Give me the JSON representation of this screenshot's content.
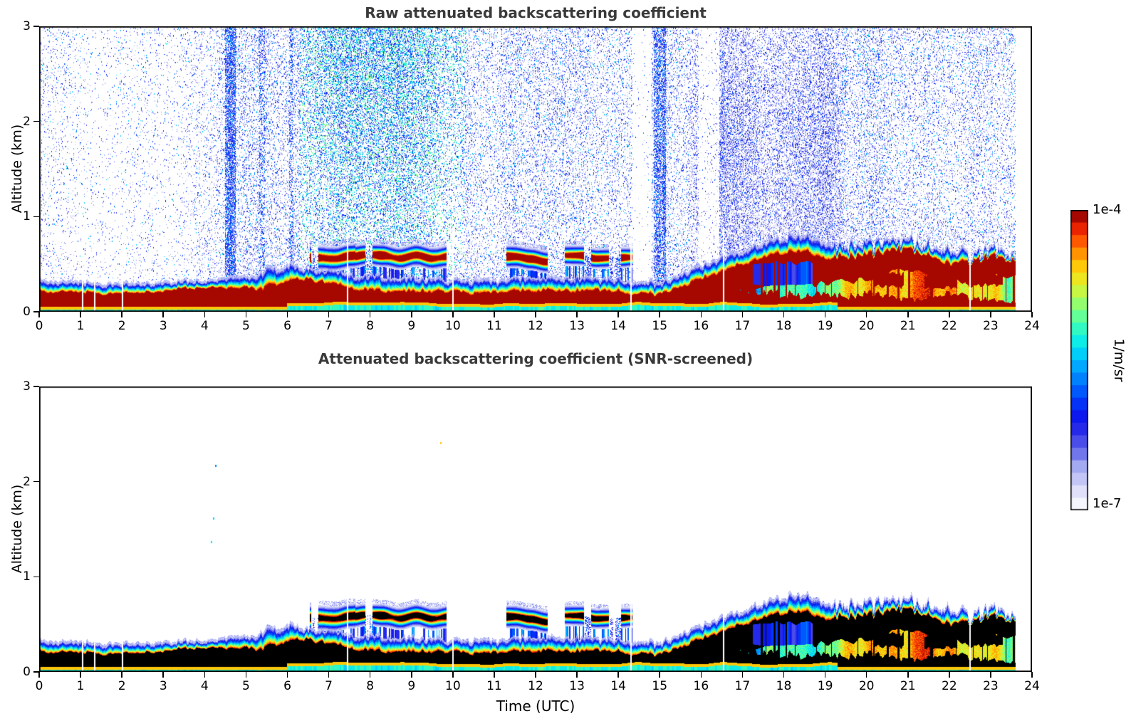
{
  "chart_data": {
    "type": "heatmap",
    "panels": [
      {
        "title": "Raw attenuated backscattering coefficient"
      },
      {
        "title": "Attenuated backscattering coefficient (SNR-screened)"
      }
    ],
    "axes": {
      "xlabel": "Time (UTC)",
      "ylabel": "Altitude (km)",
      "xlim": [
        0,
        24
      ],
      "ylim": [
        0,
        3
      ],
      "xticks": [
        0,
        1,
        2,
        3,
        4,
        5,
        6,
        7,
        8,
        9,
        10,
        11,
        12,
        13,
        14,
        15,
        16,
        17,
        18,
        19,
        20,
        21,
        22,
        23,
        24
      ],
      "yticks": [
        0,
        1,
        2,
        3
      ]
    },
    "colorbar": {
      "unit": "1/m/sr",
      "max_label": "1e-4",
      "min_label": "1e-7",
      "vmin": 1e-07,
      "vmax": 0.0001,
      "scale": "log10",
      "levels": 24,
      "stops": [
        {
          "u": 0.0,
          "c": "#ffffff"
        },
        {
          "u": 0.07,
          "c": "#dcdcfa"
        },
        {
          "u": 0.14,
          "c": "#aab0f2"
        },
        {
          "u": 0.2,
          "c": "#6468ec"
        },
        {
          "u": 0.26,
          "c": "#2b2de8"
        },
        {
          "u": 0.32,
          "c": "#0a16f0"
        },
        {
          "u": 0.38,
          "c": "#0049fb"
        },
        {
          "u": 0.44,
          "c": "#0083ff"
        },
        {
          "u": 0.5,
          "c": "#00bcff"
        },
        {
          "u": 0.55,
          "c": "#04e9f0"
        },
        {
          "u": 0.6,
          "c": "#2df8c8"
        },
        {
          "u": 0.65,
          "c": "#66ff94"
        },
        {
          "u": 0.7,
          "c": "#a4fc60"
        },
        {
          "u": 0.75,
          "c": "#dff22e"
        },
        {
          "u": 0.8,
          "c": "#ffd60a"
        },
        {
          "u": 0.85,
          "c": "#ff9b00"
        },
        {
          "u": 0.9,
          "c": "#ff5000"
        },
        {
          "u": 0.95,
          "c": "#e31400"
        },
        {
          "u": 1.0,
          "c": "#7e0000"
        }
      ]
    },
    "time_end": 23.6,
    "control_step_h": 0.5,
    "model": {
      "core_top_km": [
        0.22,
        0.2,
        0.21,
        0.19,
        0.2,
        0.2,
        0.21,
        0.24,
        0.26,
        0.25,
        0.24,
        0.26,
        0.3,
        0.34,
        0.3,
        0.24,
        0.22,
        0.22,
        0.22,
        0.21,
        0.2,
        0.19,
        0.2,
        0.22,
        0.22,
        0.21,
        0.22,
        0.22,
        0.21,
        0.18,
        0.19,
        0.25,
        0.35,
        0.42,
        0.5,
        0.58,
        0.62,
        0.64,
        0.55,
        0.58,
        0.6,
        0.62,
        0.65,
        0.6,
        0.5,
        0.52,
        0.58,
        0.55,
        0.55
      ],
      "layer_top_km": [
        0.33,
        0.3,
        0.31,
        0.28,
        0.29,
        0.28,
        0.3,
        0.31,
        0.32,
        0.34,
        0.35,
        0.42,
        0.45,
        0.45,
        0.42,
        0.38,
        0.37,
        0.36,
        0.35,
        0.34,
        0.32,
        0.31,
        0.31,
        0.36,
        0.35,
        0.33,
        0.35,
        0.34,
        0.33,
        0.29,
        0.3,
        0.38,
        0.48,
        0.56,
        0.62,
        0.72,
        0.78,
        0.8,
        0.72,
        0.68,
        0.7,
        0.72,
        0.74,
        0.7,
        0.62,
        0.58,
        0.66,
        0.6,
        0.62
      ],
      "band_base_km": [
        0,
        0,
        0,
        0,
        0,
        0,
        0,
        0,
        0,
        0,
        0,
        0,
        0,
        0,
        0,
        0,
        0,
        0,
        0,
        0,
        0,
        0,
        0,
        0,
        0,
        0,
        0,
        0,
        0,
        0,
        0,
        0,
        0.08,
        0.15,
        0.22,
        0.28,
        0.3,
        0.32,
        0.28,
        0.32,
        0.35,
        0.4,
        0.44,
        0.38,
        0.3,
        0.32,
        0.36,
        0.38,
        0.38
      ],
      "fill_value": [
        1,
        1,
        1,
        1,
        1,
        1,
        1,
        1,
        1,
        1,
        1,
        1,
        1,
        1,
        1,
        1,
        1,
        1,
        1,
        1,
        1,
        1,
        1,
        1,
        1,
        1,
        1,
        1,
        1,
        1,
        1,
        1,
        0.95,
        0.75,
        0.62,
        0.58,
        0.55,
        0.52,
        0.6,
        0.8,
        0.85,
        0.85,
        0.83,
        0.85,
        0.82,
        0.8,
        0.75,
        0.7,
        0.7
      ],
      "surface_core_km": [
        0,
        0,
        0,
        0,
        0,
        0,
        0,
        0,
        0,
        0,
        0,
        0,
        0,
        0,
        0,
        0,
        0,
        0,
        0,
        0,
        0,
        0,
        0,
        0,
        0,
        0,
        0,
        0,
        0,
        0,
        0,
        0,
        0.28,
        0.25,
        0.22,
        0.2,
        0.18,
        0.15,
        0.2,
        0.15,
        0.18,
        0.15,
        0.12,
        0.15,
        0.18,
        0.15,
        0.12,
        0.1,
        0.1
      ],
      "noise_density": [
        0.1,
        0.1,
        0.1,
        0.08,
        0.09,
        0.1,
        0.1,
        0.12,
        0.15,
        0.22,
        0.25,
        0.28,
        0.25,
        0.45,
        0.55,
        0.6,
        0.6,
        0.6,
        0.58,
        0.55,
        0.45,
        0.35,
        0.32,
        0.35,
        0.35,
        0.33,
        0.35,
        0.33,
        0.3,
        0.12,
        0.45,
        0.25,
        0.5,
        0.55,
        0.6,
        0.6,
        0.6,
        0.58,
        0.55,
        0.45,
        0.35,
        0.33,
        0.32,
        0.3,
        0.28,
        0.3,
        0.3,
        0.32,
        0.0
      ],
      "noise_bias_segments": [
        {
          "t0": 6.3,
          "t1": 10.3,
          "mode": "green"
        },
        {
          "t0": 15.7,
          "t1": 19.4,
          "mode": "blue"
        }
      ],
      "clouds": [
        {
          "t0": 6.55,
          "t1": 7.65,
          "z": 0.58,
          "sz": 0.055,
          "presence": 0.85
        },
        {
          "t0": 7.65,
          "t1": 9.85,
          "z": 0.57,
          "sz": 0.05,
          "presence": 0.72
        },
        {
          "t0": 11.3,
          "t1": 12.3,
          "z": 0.55,
          "sz": 0.05,
          "presence": 0.7
        },
        {
          "t0": 12.7,
          "t1": 14.35,
          "z": 0.55,
          "sz": 0.045,
          "presence": 0.65
        }
      ],
      "blue_columns": [
        {
          "t0": 4.5,
          "t1": 4.75,
          "strength": 0.9
        },
        {
          "t0": 5.3,
          "t1": 5.45,
          "strength": 0.5
        },
        {
          "t0": 6.05,
          "t1": 6.15,
          "strength": 0.45
        },
        {
          "t0": 14.85,
          "t1": 15.15,
          "strength": 0.9
        }
      ],
      "quiet_zones": [
        {
          "t0": 15.95,
          "t1": 16.45
        },
        {
          "t0": 14.35,
          "t1": 14.8
        }
      ],
      "gaps_h": [
        1.05,
        1.35,
        2.02,
        7.45,
        10.0,
        14.3,
        16.55,
        22.5
      ],
      "blue_patches": [
        {
          "t0": 17.25,
          "t1": 18.7,
          "z0": 0.3,
          "z1": 0.52
        }
      ],
      "dark_blobs": [
        {
          "t0": 20.2,
          "t1": 20.9,
          "z0": 0.26,
          "z1": 0.4
        },
        {
          "t0": 21.4,
          "t1": 22.2,
          "z0": 0.25,
          "z1": 0.38
        },
        {
          "t0": 22.4,
          "t1": 23.3,
          "z0": 0.28,
          "z1": 0.4
        }
      ],
      "surface_cyan_band": {
        "t0": 6.0,
        "t1": 19.3,
        "thick_km": 0.05,
        "default_km": 0.02
      },
      "specks_screened": [
        {
          "t": 4.15,
          "z": 1.38,
          "u": 0.55
        },
        {
          "t": 4.2,
          "z": 1.62,
          "u": 0.5
        },
        {
          "t": 4.25,
          "z": 2.18,
          "u": 0.42
        },
        {
          "t": 9.7,
          "z": 2.42,
          "u": 0.82
        }
      ]
    }
  }
}
